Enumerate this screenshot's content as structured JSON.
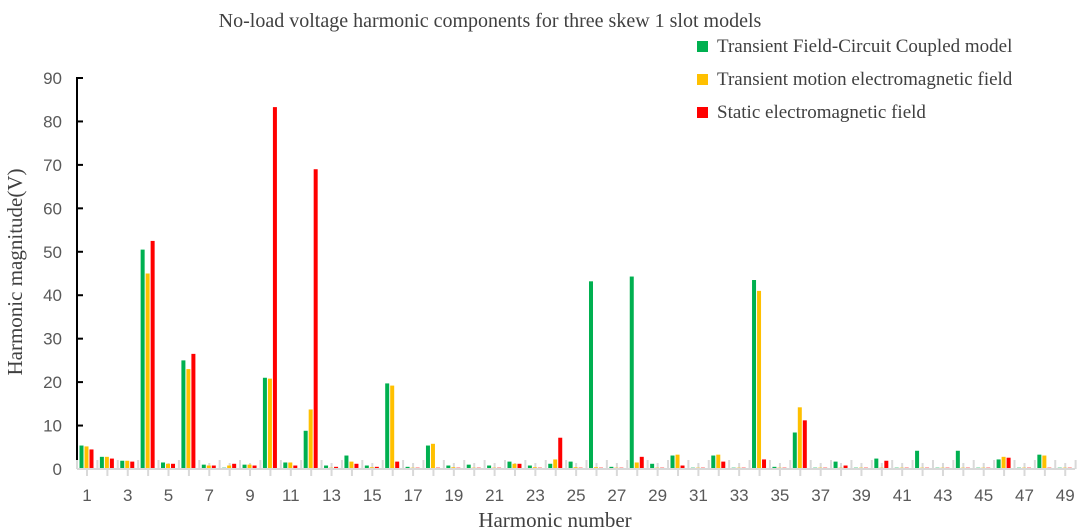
{
  "chart_data": {
    "type": "bar",
    "title": "No-load voltage harmonic components for three skew 1 slot models",
    "xlabel": "Harmonic number",
    "ylabel": "Harmonic magnitude(V)",
    "ylim": [
      0,
      90
    ],
    "yticks": [
      0,
      10,
      20,
      30,
      40,
      50,
      60,
      70,
      80,
      90
    ],
    "xticklabels": [
      "1",
      "3",
      "5",
      "7",
      "9",
      "11",
      "13",
      "15",
      "17",
      "19",
      "21",
      "23",
      "25",
      "27",
      "29",
      "31",
      "33",
      "35",
      "37",
      "39",
      "41",
      "43",
      "45",
      "47",
      "49"
    ],
    "categories": [
      1,
      2,
      3,
      4,
      5,
      6,
      7,
      8,
      9,
      10,
      11,
      12,
      13,
      14,
      15,
      16,
      17,
      18,
      19,
      20,
      21,
      22,
      23,
      24,
      25,
      26,
      27,
      28,
      29,
      30,
      31,
      32,
      33,
      34,
      35,
      36,
      37,
      38,
      39,
      40,
      41,
      42,
      43,
      44,
      45,
      46,
      47,
      48,
      49
    ],
    "legend_position": "top-right",
    "grid": false,
    "series": [
      {
        "name": "Transient Field-Circuit Coupled model",
        "color": "#00b050",
        "values": [
          5.4,
          2.8,
          1.9,
          50.5,
          1.5,
          25,
          1.0,
          0.3,
          1.0,
          21,
          1.5,
          8.8,
          0.8,
          3.1,
          0.8,
          19.7,
          0.5,
          5.4,
          0.8,
          1.0,
          0.8,
          1.7,
          0.8,
          1.2,
          1.7,
          43.2,
          0.5,
          44.3,
          1.2,
          3.1,
          0.3,
          3.1,
          0.3,
          43.5,
          0.5,
          8.4,
          0.3,
          1.7,
          0.3,
          2.4,
          0.3,
          4.2,
          0.3,
          4.2,
          0.3,
          2.2,
          0.3,
          3.3,
          0.3
        ]
      },
      {
        "name": "Transient motion electromagnetic field",
        "color": "#ffc000",
        "values": [
          5.2,
          2.8,
          1.9,
          45,
          1.2,
          23,
          0.8,
          0.8,
          1.0,
          20.8,
          1.5,
          13.7,
          0.3,
          1.7,
          0.4,
          19.2,
          0.3,
          5.8,
          0.4,
          0.3,
          0.3,
          1.2,
          0.4,
          2.2,
          0.4,
          0.4,
          0.3,
          1.5,
          0.3,
          3.3,
          0.3,
          3.3,
          0.3,
          41,
          0.3,
          14.2,
          0.3,
          0.3,
          0.3,
          0.3,
          0.3,
          0.3,
          0.3,
          0.3,
          0.3,
          2.8,
          0.3,
          3.1,
          0.3
        ]
      },
      {
        "name": "Static electromagnetic field",
        "color": "#ff0000",
        "values": [
          4.5,
          2.4,
          1.7,
          52.5,
          1.2,
          26.5,
          0.8,
          1.2,
          0.8,
          83.3,
          0.8,
          69,
          0.5,
          1.2,
          0.5,
          1.7,
          0.3,
          0.3,
          0.3,
          0.3,
          0.3,
          1.2,
          0.3,
          7.2,
          0.3,
          0.3,
          0.3,
          2.8,
          0.3,
          0.8,
          0.3,
          1.7,
          0.3,
          2.2,
          0.3,
          11.2,
          0.3,
          0.8,
          0.3,
          1.9,
          0.3,
          0.3,
          0.3,
          0.3,
          0.3,
          2.6,
          0.3,
          0.3,
          0.3
        ]
      }
    ]
  }
}
